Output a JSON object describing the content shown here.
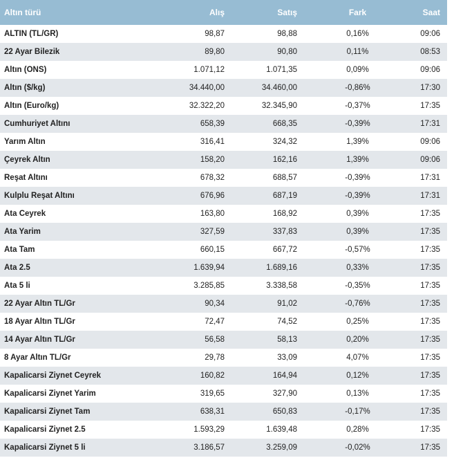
{
  "headers": [
    "Altın türü",
    "Alış",
    "Satış",
    "Fark",
    "Saat"
  ],
  "rows": [
    [
      "ALTIN (TL/GR)",
      "98,87",
      "98,88",
      "0,16%",
      "09:06"
    ],
    [
      "22 Ayar Bilezik",
      "89,80",
      "90,80",
      "0,11%",
      "08:53"
    ],
    [
      "Altın (ONS)",
      "1.071,12",
      "1.071,35",
      "0,09%",
      "09:06"
    ],
    [
      "Altın ($/kg)",
      "34.440,00",
      "34.460,00",
      "-0,86%",
      "17:30"
    ],
    [
      "Altın (Euro/kg)",
      "32.322,20",
      "32.345,90",
      "-0,37%",
      "17:35"
    ],
    [
      "Cumhuriyet Altını",
      "658,39",
      "668,35",
      "-0,39%",
      "17:31"
    ],
    [
      "Yarım Altın",
      "316,41",
      "324,32",
      "1,39%",
      "09:06"
    ],
    [
      "Çeyrek Altın",
      "158,20",
      "162,16",
      "1,39%",
      "09:06"
    ],
    [
      "Reşat Altını",
      "678,32",
      "688,57",
      "-0,39%",
      "17:31"
    ],
    [
      "Kulplu Reşat Altını",
      "676,96",
      "687,19",
      "-0,39%",
      "17:31"
    ],
    [
      "Ata Ceyrek",
      "163,80",
      "168,92",
      "0,39%",
      "17:35"
    ],
    [
      "Ata Yarim",
      "327,59",
      "337,83",
      "0,39%",
      "17:35"
    ],
    [
      "Ata Tam",
      "660,15",
      "667,72",
      "-0,57%",
      "17:35"
    ],
    [
      "Ata 2.5",
      "1.639,94",
      "1.689,16",
      "0,33%",
      "17:35"
    ],
    [
      "Ata 5 li",
      "3.285,85",
      "3.338,58",
      "-0,35%",
      "17:35"
    ],
    [
      "22 Ayar Altın TL/Gr",
      "90,34",
      "91,02",
      "-0,76%",
      "17:35"
    ],
    [
      "18 Ayar Altın TL/Gr",
      "72,47",
      "74,52",
      "0,25%",
      "17:35"
    ],
    [
      "14 Ayar Altın TL/Gr",
      "56,58",
      "58,13",
      "0,20%",
      "17:35"
    ],
    [
      "8 Ayar Altın TL/Gr",
      "29,78",
      "33,09",
      "4,07%",
      "17:35"
    ],
    [
      "Kapalicarsi Ziynet Ceyrek",
      "160,82",
      "164,94",
      "0,12%",
      "17:35"
    ],
    [
      "Kapalicarsi Ziynet Yarim",
      "319,65",
      "327,90",
      "0,13%",
      "17:35"
    ],
    [
      "Kapalicarsi Ziynet Tam",
      "638,31",
      "650,83",
      "-0,17%",
      "17:35"
    ],
    [
      "Kapalicarsi Ziynet 2.5",
      "1.593,29",
      "1.639,48",
      "0,28%",
      "17:35"
    ],
    [
      "Kapalicarsi Ziynet 5 li",
      "3.186,57",
      "3.259,09",
      "-0,02%",
      "17:35"
    ]
  ]
}
